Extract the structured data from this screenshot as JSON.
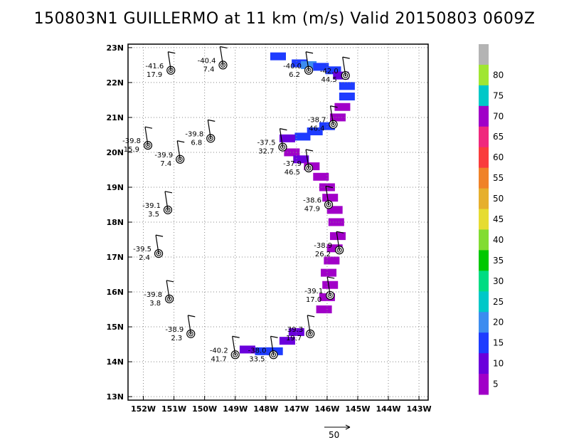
{
  "title": "150803N1 GUILLERMO at 11 km (m/s) Valid 20150803 0609Z",
  "scale_arrow_label": "50",
  "chart_data": {
    "type": "scatter",
    "title": "150803N1 GUILLERMO at 11 km (m/s) Valid 20150803 0609Z",
    "xlim": [
      -152.5,
      -142.7
    ],
    "ylim": [
      12.9,
      23.1
    ],
    "x_ticks": [
      {
        "v": -152,
        "label": "152W"
      },
      {
        "v": -151,
        "label": "151W"
      },
      {
        "v": -150,
        "label": "150W"
      },
      {
        "v": -149,
        "label": "149W"
      },
      {
        "v": -148,
        "label": "148W"
      },
      {
        "v": -147,
        "label": "147W"
      },
      {
        "v": -146,
        "label": "146W"
      },
      {
        "v": -145,
        "label": "145W"
      },
      {
        "v": -144,
        "label": "144W"
      },
      {
        "v": -143,
        "label": "143W"
      }
    ],
    "y_ticks": [
      {
        "v": 13,
        "label": "13N"
      },
      {
        "v": 14,
        "label": "14N"
      },
      {
        "v": 15,
        "label": "15N"
      },
      {
        "v": 16,
        "label": "16N"
      },
      {
        "v": 17,
        "label": "17N"
      },
      {
        "v": 18,
        "label": "18N"
      },
      {
        "v": 19,
        "label": "19N"
      },
      {
        "v": 20,
        "label": "20N"
      },
      {
        "v": 21,
        "label": "21N"
      },
      {
        "v": 22,
        "label": "22N"
      },
      {
        "v": 23,
        "label": "23N"
      }
    ],
    "grid": true,
    "colorbar": {
      "labels": [
        "5",
        "10",
        "15",
        "20",
        "25",
        "30",
        "35",
        "40",
        "45",
        "50",
        "55",
        "60",
        "65",
        "70",
        "75",
        "80"
      ],
      "colors": [
        "#a100c8",
        "#6a00dc",
        "#1e3cff",
        "#3c8cf0",
        "#00c8c8",
        "#00dc82",
        "#00c800",
        "#82dc32",
        "#e6dc32",
        "#e6af2d",
        "#f08228",
        "#fa3c3c",
        "#f0287d",
        "#a000c8",
        "#00c8c8",
        "#a0e632",
        "#b4b4b4"
      ]
    },
    "stations": [
      {
        "lon": -151.1,
        "lat": 22.35,
        "t": "-41.6",
        "w": "17.9"
      },
      {
        "lon": -149.4,
        "lat": 22.5,
        "t": "-40.4",
        "w": "7.4"
      },
      {
        "lon": -146.6,
        "lat": 22.35,
        "t": "-40.0",
        "w": "6.2"
      },
      {
        "lon": -145.4,
        "lat": 22.2,
        "t": "-42.0",
        "w": "44.5"
      },
      {
        "lon": -145.8,
        "lat": 20.8,
        "t": "-38.7",
        "w": "46.4"
      },
      {
        "lon": -151.85,
        "lat": 20.2,
        "t": "-39.8",
        "w": "15.9"
      },
      {
        "lon": -149.8,
        "lat": 20.4,
        "t": "-39.8",
        "w": "6.8"
      },
      {
        "lon": -150.8,
        "lat": 19.8,
        "t": "-39.9",
        "w": "7.4"
      },
      {
        "lon": -147.45,
        "lat": 20.15,
        "t": "-37.5",
        "w": "32.7"
      },
      {
        "lon": -146.6,
        "lat": 19.55,
        "t": "-37.9",
        "w": "46.5"
      },
      {
        "lon": -151.2,
        "lat": 18.35,
        "t": "-39.1",
        "w": "3.5"
      },
      {
        "lon": -145.95,
        "lat": 18.5,
        "t": "-38.6",
        "w": "47.9"
      },
      {
        "lon": -151.5,
        "lat": 17.1,
        "t": "-39.5",
        "w": "2.4"
      },
      {
        "lon": -145.6,
        "lat": 17.2,
        "t": "-38.9",
        "w": "26.2"
      },
      {
        "lon": -151.15,
        "lat": 15.8,
        "t": "-39.8",
        "w": "3.8"
      },
      {
        "lon": -145.9,
        "lat": 15.9,
        "t": "-39.1",
        "w": "17.0"
      },
      {
        "lon": -150.45,
        "lat": 14.8,
        "t": "-38.9",
        "w": "2.3"
      },
      {
        "lon": -146.55,
        "lat": 14.8,
        "t": "-39.3",
        "w": "19.7"
      },
      {
        "lon": -149.0,
        "lat": 14.2,
        "t": "-40.2",
        "w": "41.7"
      },
      {
        "lon": -147.75,
        "lat": 14.2,
        "t": "-38.0",
        "w": "33.5"
      }
    ]
  }
}
